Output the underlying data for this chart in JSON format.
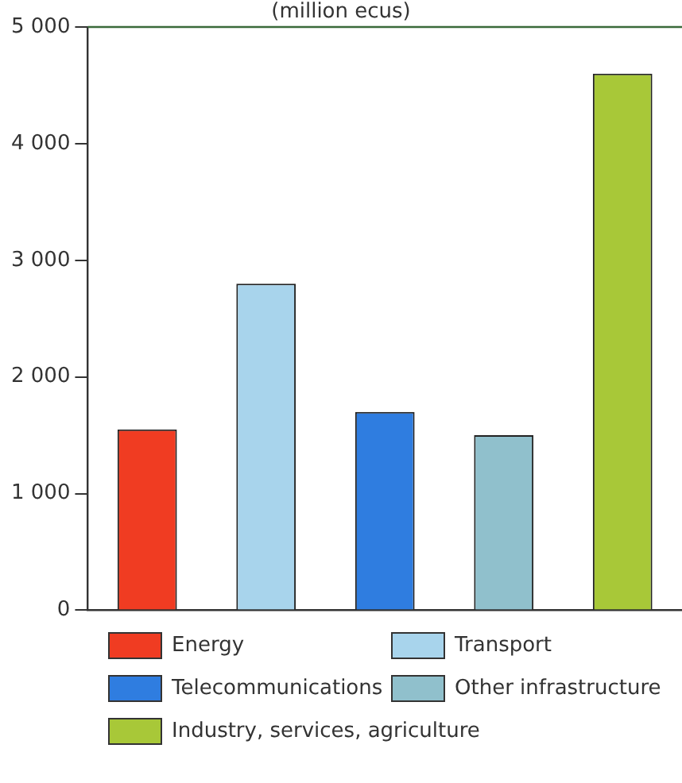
{
  "chart_data": {
    "type": "bar",
    "title": "(million ecus)",
    "categories": [
      null,
      null,
      null,
      null,
      null
    ],
    "series": [
      {
        "name": "Energy",
        "color": "#f03c22",
        "values": [
          1550,
          null,
          null,
          null,
          null
        ]
      },
      {
        "name": "Transport",
        "color": "#a8d4ec",
        "values": [
          null,
          2800,
          null,
          null,
          null
        ]
      },
      {
        "name": "Telecommunications",
        "color": "#2f7de0",
        "values": [
          null,
          null,
          1700,
          null,
          null
        ]
      },
      {
        "name": "Other infrastructure",
        "color": "#90c0cc",
        "values": [
          null,
          null,
          null,
          1500,
          null
        ]
      },
      {
        "name": "Industry, services, agriculture",
        "color": "#a8c838",
        "values": [
          null,
          null,
          null,
          null,
          4600
        ]
      }
    ],
    "ylim": [
      0,
      5000
    ],
    "yticks": [
      {
        "value": 0,
        "label": "0"
      },
      {
        "value": 1000,
        "label": "1 000"
      },
      {
        "value": 2000,
        "label": "2 000"
      },
      {
        "value": 3000,
        "label": "3 000"
      },
      {
        "value": 4000,
        "label": "4 000"
      },
      {
        "value": 5000,
        "label": "5 000"
      }
    ],
    "grid": false,
    "legend": "bottom"
  }
}
